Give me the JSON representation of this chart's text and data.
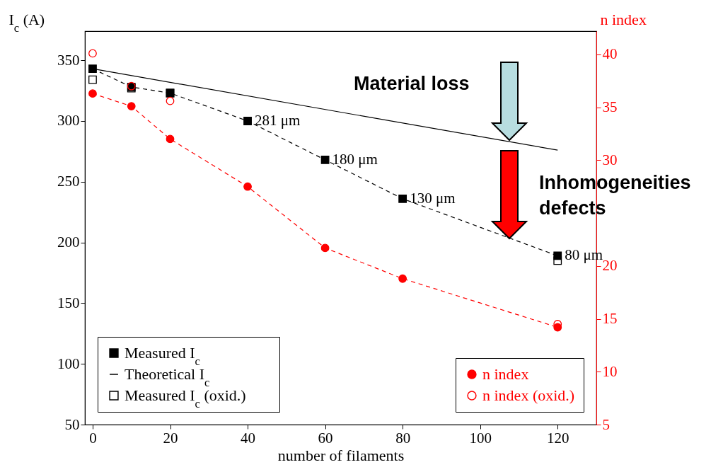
{
  "chart_data": {
    "type": "line",
    "xlabel": "number of filaments",
    "ylabel": "I$_{c}$ (A)",
    "y2label": "n index",
    "xlim": [
      -2,
      130
    ],
    "xticks": [
      0,
      20,
      40,
      60,
      80,
      100,
      120
    ],
    "ylim": [
      50,
      374
    ],
    "yticks": [
      50,
      100,
      150,
      200,
      250,
      300,
      350
    ],
    "y2lim": [
      5,
      42.2
    ],
    "y2ticks": [
      5,
      10,
      15,
      20,
      {
        "value": 25,
        "label": null
      },
      30,
      35,
      40
    ],
    "grid": false,
    "legend": "bottom",
    "series": [
      {
        "name": "Measured I$_{c}$",
        "type": "line",
        "marker": "square",
        "line_style": "dashed",
        "color": "#000000",
        "x": [
          0,
          10,
          20,
          40,
          60,
          80,
          120
        ],
        "values": [
          343,
          328,
          323,
          300,
          268,
          236,
          189
        ]
      },
      {
        "name": "Theoretical I$_{c}$",
        "type": "line",
        "marker": "none",
        "line_style": "solid",
        "color": "#000000",
        "x": [
          0,
          120
        ],
        "values": [
          343,
          276
        ]
      },
      {
        "name": "Measured I$_{c}$ (oxid.)",
        "type": "scatter",
        "marker": "square",
        "color": "#000000",
        "x": [
          0,
          10,
          20,
          120
        ],
        "values": [
          334,
          327,
          323,
          185
        ]
      },
      {
        "name": "n index",
        "type": "line",
        "marker": "circle",
        "line_style": "dashed",
        "color": "#ff0000",
        "axis": "y2",
        "x": [
          0,
          10,
          20,
          40,
          60,
          80,
          120
        ],
        "values": [
          36.3,
          35.1,
          32.0,
          27.5,
          21.7,
          18.8,
          14.2
        ]
      },
      {
        "name": "n index (oxid.)",
        "type": "scatter",
        "marker": "circle",
        "color": "#ff0000",
        "axis": "y2",
        "x": [
          0,
          10,
          20,
          120
        ],
        "values": [
          40.1,
          37.0,
          35.6,
          14.5
        ]
      }
    ],
    "annotations": [
      {
        "text": "281 μm",
        "x": 40,
        "y": 300
      },
      {
        "text": "180 μm",
        "x": 60,
        "y": 268
      },
      {
        "text": "130 μm",
        "x": 80,
        "y": 236
      },
      {
        "text": "80 μm",
        "x": 120,
        "y": 189
      },
      "Material loss",
      "Inhomogeneities defects"
    ]
  }
}
